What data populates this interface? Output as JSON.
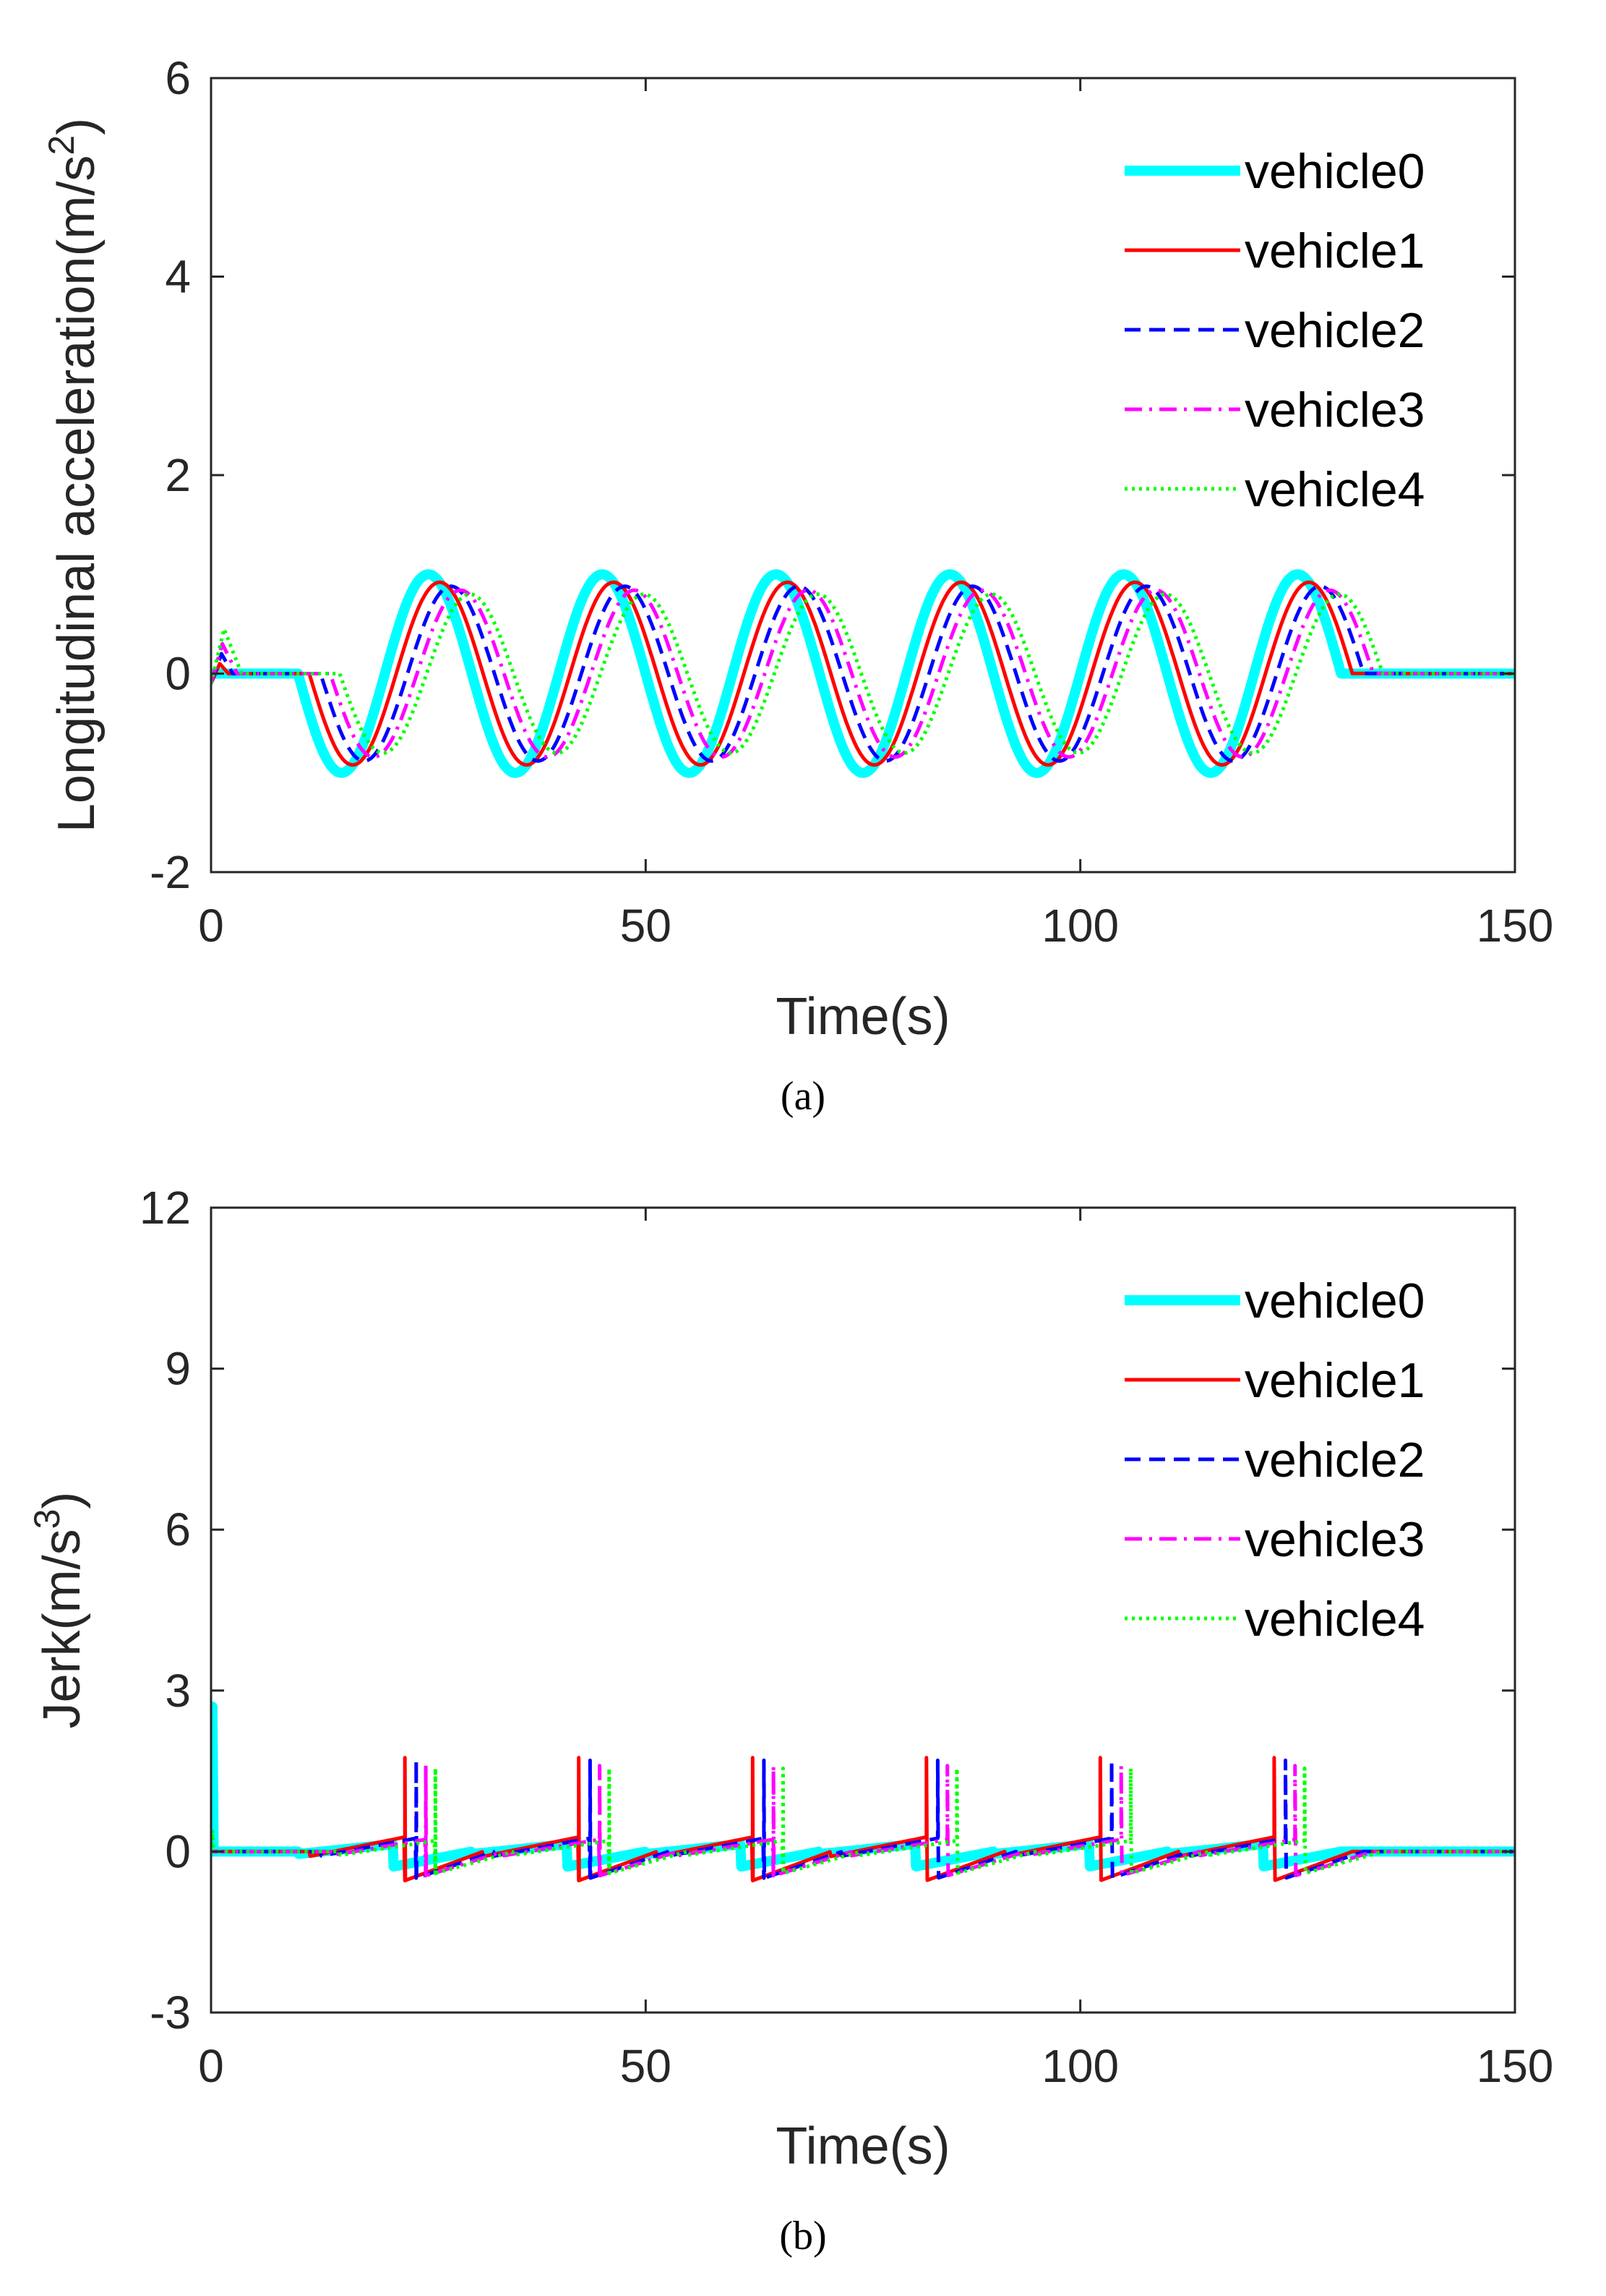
{
  "chart_data": [
    {
      "type": "line",
      "panel_label": "(a)",
      "xlabel": "Time(s)",
      "ylabel_main": "Longitudinal acceleration(m/s",
      "ylabel_sup": "2",
      "ylabel_tail": ")",
      "xlim": [
        0,
        150
      ],
      "ylim": [
        -2,
        6
      ],
      "xticks": [
        "0",
        "50",
        "100",
        "150"
      ],
      "yticks": [
        "-2",
        "0",
        "2",
        "4",
        "6"
      ],
      "xtick_values": [
        0,
        50,
        100,
        150
      ],
      "ytick_values": [
        -2,
        0,
        2,
        4,
        6
      ],
      "legend_position": "top-right",
      "series": [
        {
          "name": "vehicle0",
          "color": "#00ffff",
          "style": "solid",
          "width": "thick",
          "amplitude": 1.0,
          "lag": 0.0,
          "start_transient": [],
          "fade": 0.0
        },
        {
          "name": "vehicle1",
          "color": "#ff0000",
          "style": "solid",
          "width": "normal",
          "amplitude": 0.92,
          "lag": 1.3,
          "start_transient": [
            [
              0,
              -0.1
            ],
            [
              1,
              0.1
            ],
            [
              2,
              0.0
            ]
          ],
          "fade": 2.0
        },
        {
          "name": "vehicle2",
          "color": "#0000ff",
          "style": "dashed",
          "width": "normal",
          "amplitude": 0.88,
          "lag": 2.6,
          "start_transient": [
            [
              0,
              -0.1
            ],
            [
              1.2,
              0.2
            ],
            [
              2.5,
              0.0
            ]
          ],
          "fade": 3.0
        },
        {
          "name": "vehicle3",
          "color": "#ff00ff",
          "style": "dashdot",
          "width": "normal",
          "amplitude": 0.84,
          "lag": 3.7,
          "start_transient": [
            [
              0,
              -0.1
            ],
            [
              1.3,
              0.3
            ],
            [
              3.0,
              0.0
            ]
          ],
          "fade": 4.0
        },
        {
          "name": "vehicle4",
          "color": "#00ff00",
          "style": "dotted",
          "width": "normal",
          "amplitude": 0.8,
          "lag": 4.8,
          "start_transient": [
            [
              0,
              -0.1
            ],
            [
              1.5,
              0.45
            ],
            [
              3.5,
              0.0
            ]
          ],
          "fade": 5.0
        }
      ],
      "model": {
        "t_start": 10,
        "t_end": 130,
        "period": 20
      }
    },
    {
      "type": "line",
      "panel_label": "(b)",
      "xlabel": "Time(s)",
      "ylabel_main": "Jerk(m/s",
      "ylabel_sup": "3",
      "ylabel_tail": ")",
      "xlim": [
        0,
        150
      ],
      "ylim": [
        -3,
        12
      ],
      "xticks": [
        "0",
        "50",
        "100",
        "150"
      ],
      "yticks": [
        "-3",
        "0",
        "3",
        "6",
        "9",
        "12"
      ],
      "xtick_values": [
        0,
        50,
        100,
        150
      ],
      "ytick_values": [
        -3,
        0,
        3,
        6,
        9,
        12
      ],
      "legend_position": "top-right",
      "series": [
        {
          "name": "vehicle0",
          "color": "#00ffff",
          "style": "solid",
          "width": "thick",
          "amplitude": 0.31,
          "lag": 0.0,
          "spike": 0.0,
          "start_spike": 2.7
        },
        {
          "name": "vehicle1",
          "color": "#ff0000",
          "style": "solid",
          "width": "normal",
          "amplitude": 0.6,
          "lag": 1.3,
          "spike": 1.75,
          "start_spike": 0.0
        },
        {
          "name": "vehicle2",
          "color": "#0000ff",
          "style": "dashed",
          "width": "normal",
          "amplitude": 0.55,
          "lag": 2.6,
          "spike": 1.7,
          "start_spike": 0.0
        },
        {
          "name": "vehicle3",
          "color": "#ff00ff",
          "style": "dashdot",
          "width": "normal",
          "amplitude": 0.5,
          "lag": 3.7,
          "spike": 1.6,
          "start_spike": 0.0
        },
        {
          "name": "vehicle4",
          "color": "#00ff00",
          "style": "dotted",
          "width": "normal",
          "amplitude": 0.45,
          "lag": 4.8,
          "spike": 1.55,
          "start_spike": 0.4
        }
      ],
      "model": {
        "t_start": 10,
        "t_end": 130,
        "period": 20
      }
    }
  ]
}
